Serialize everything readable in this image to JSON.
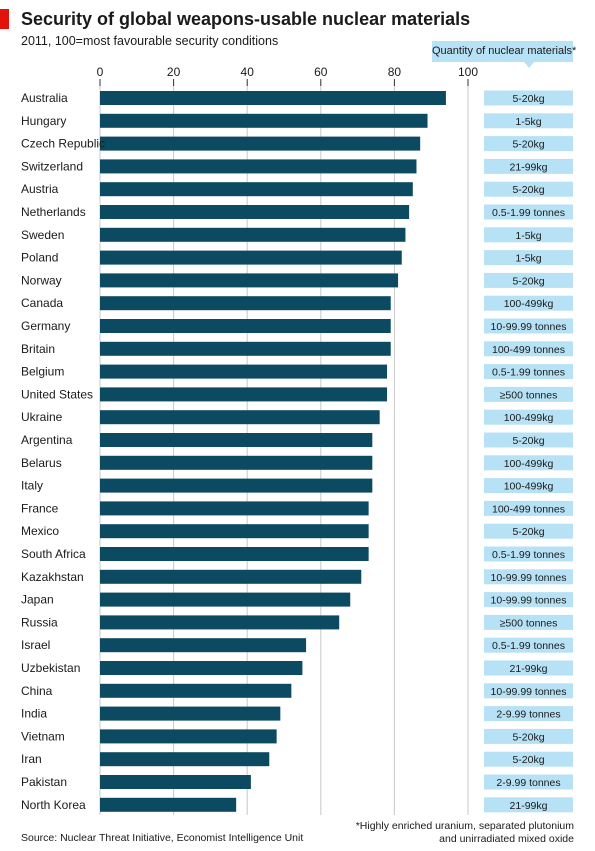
{
  "chart_data": {
    "type": "bar",
    "orientation": "horizontal",
    "title": "Security of global weapons-usable nuclear materials",
    "subtitle": "2011, 100=most favourable security conditions",
    "xlim": [
      0,
      100
    ],
    "xticks": [
      0,
      20,
      40,
      60,
      80,
      100
    ],
    "grid": true,
    "bar_color": "#0b4a60",
    "categories": [
      "Australia",
      "Hungary",
      "Czech Republic",
      "Switzerland",
      "Austria",
      "Netherlands",
      "Sweden",
      "Poland",
      "Norway",
      "Canada",
      "Germany",
      "Britain",
      "Belgium",
      "United States",
      "Ukraine",
      "Argentina",
      "Belarus",
      "Italy",
      "France",
      "Mexico",
      "South Africa",
      "Kazakhstan",
      "Japan",
      "Russia",
      "Israel",
      "Uzbekistan",
      "China",
      "India",
      "Vietnam",
      "Iran",
      "Pakistan",
      "North Korea"
    ],
    "values": [
      94,
      89,
      87,
      86,
      85,
      84,
      83,
      82,
      81,
      79,
      79,
      79,
      78,
      78,
      76,
      74,
      74,
      74,
      73,
      73,
      73,
      71,
      68,
      65,
      56,
      55,
      52,
      49,
      48,
      46,
      41,
      37
    ],
    "quantity_header": "Quantity of nuclear materials*",
    "quantity_color": "#b7e1f5",
    "quantities": [
      "5-20kg",
      "1-5kg",
      "5-20kg",
      "21-99kg",
      "5-20kg",
      "0.5-1.99 tonnes",
      "1-5kg",
      "1-5kg",
      "5-20kg",
      "100-499kg",
      "10-99.99 tonnes",
      "100-499 tonnes",
      "0.5-1.99 tonnes",
      "≥500 tonnes",
      "100-499kg",
      "5-20kg",
      "100-499kg",
      "100-499kg",
      "100-499 tonnes",
      "5-20kg",
      "0.5-1.99 tonnes",
      "10-99.99 tonnes",
      "10-99.99 tonnes",
      "≥500 tonnes",
      "0.5-1.99 tonnes",
      "21-99kg",
      "10-99.99 tonnes",
      "2-9.99 tonnes",
      "5-20kg",
      "5-20kg",
      "2-9.99 tonnes",
      "21-99kg"
    ]
  },
  "source": "Source: Nuclear Threat Initiative, Economist Intelligence Unit",
  "footnote": {
    "line1": "*Highly enriched uranium, separated plutonium",
    "line2": "and unirradiated mixed oxide"
  },
  "brand_color": "#e3120b"
}
